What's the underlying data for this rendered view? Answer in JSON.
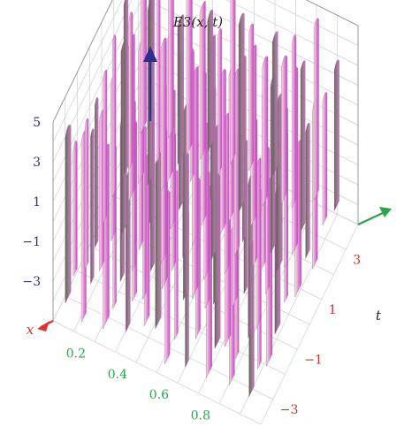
{
  "chart_data": {
    "type": "surface3d",
    "title": "",
    "axes": {
      "x": {
        "label": "x",
        "range": [
          0,
          1
        ],
        "ticks": [
          "0.2",
          "0.4",
          "0.6",
          "0.8"
        ],
        "color": "#e0342a"
      },
      "t": {
        "label": "t",
        "range": [
          -4,
          4
        ],
        "ticks": [
          "-3",
          "-1",
          "1",
          "3"
        ],
        "color": "#2aa64a"
      },
      "z": {
        "label": "E3(x, t)",
        "range": [
          -5,
          5
        ],
        "ticks": [
          "-3",
          "-1",
          "1",
          "3",
          "5"
        ],
        "color": "#2e2f8c"
      }
    },
    "grid": true,
    "surface_color": "#d57ad0"
  }
}
